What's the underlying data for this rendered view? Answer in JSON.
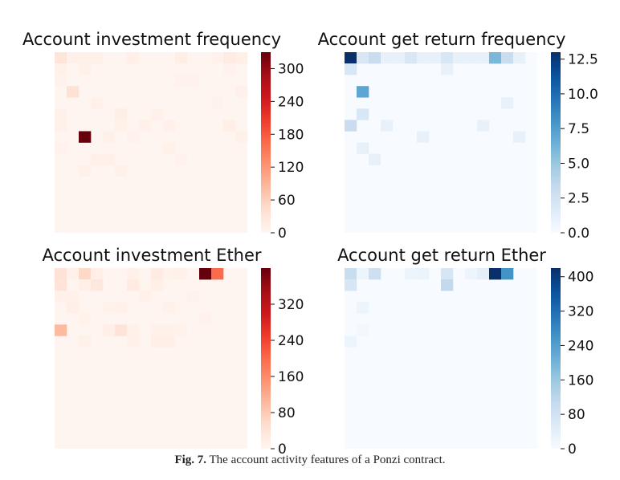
{
  "caption": {
    "label": "Fig. 7.",
    "text": "The account activity features of a Ponzi contract."
  },
  "chart_data": [
    {
      "type": "heatmap",
      "title": "Account investment frequency",
      "colormap": "Reds",
      "vmin": 0,
      "vmax": 330,
      "colorbar_ticks": [
        0,
        60,
        120,
        180,
        240,
        300
      ],
      "cells": [
        {
          "row": 0,
          "col": 0,
          "value": 32
        },
        {
          "row": 0,
          "col": 1,
          "value": 8
        },
        {
          "row": 0,
          "col": 2,
          "value": 8
        },
        {
          "row": 0,
          "col": 3,
          "value": 10
        },
        {
          "row": 0,
          "col": 6,
          "value": 12
        },
        {
          "row": 0,
          "col": 10,
          "value": 14
        },
        {
          "row": 0,
          "col": 13,
          "value": 6
        },
        {
          "row": 0,
          "col": 14,
          "value": 20
        },
        {
          "row": 0,
          "col": 15,
          "value": 12
        },
        {
          "row": 1,
          "col": 0,
          "value": 8
        },
        {
          "row": 1,
          "col": 2,
          "value": 8
        },
        {
          "row": 1,
          "col": 14,
          "value": 6
        },
        {
          "row": 2,
          "col": 0,
          "value": 6
        },
        {
          "row": 2,
          "col": 10,
          "value": 6
        },
        {
          "row": 2,
          "col": 11,
          "value": 6
        },
        {
          "row": 3,
          "col": 1,
          "value": 38
        },
        {
          "row": 3,
          "col": 15,
          "value": 10
        },
        {
          "row": 4,
          "col": 3,
          "value": 8
        },
        {
          "row": 4,
          "col": 13,
          "value": 6
        },
        {
          "row": 5,
          "col": 0,
          "value": 10
        },
        {
          "row": 5,
          "col": 5,
          "value": 14
        },
        {
          "row": 5,
          "col": 8,
          "value": 8
        },
        {
          "row": 6,
          "col": 0,
          "value": 8
        },
        {
          "row": 6,
          "col": 5,
          "value": 10
        },
        {
          "row": 6,
          "col": 7,
          "value": 8
        },
        {
          "row": 6,
          "col": 9,
          "value": 8
        },
        {
          "row": 6,
          "col": 14,
          "value": 12
        },
        {
          "row": 7,
          "col": 2,
          "value": 330
        },
        {
          "row": 7,
          "col": 4,
          "value": 8
        },
        {
          "row": 7,
          "col": 6,
          "value": 6
        },
        {
          "row": 7,
          "col": 15,
          "value": 8
        },
        {
          "row": 8,
          "col": 0,
          "value": 6
        },
        {
          "row": 8,
          "col": 9,
          "value": 8
        },
        {
          "row": 9,
          "col": 3,
          "value": 10
        },
        {
          "row": 9,
          "col": 4,
          "value": 8
        },
        {
          "row": 9,
          "col": 10,
          "value": 6
        },
        {
          "row": 10,
          "col": 2,
          "value": 8
        },
        {
          "row": 10,
          "col": 5,
          "value": 10
        }
      ]
    },
    {
      "type": "heatmap",
      "title": "Account get return frequency",
      "colormap": "Blues",
      "vmin": 0,
      "vmax": 13,
      "colorbar_ticks": [
        0.0,
        2.5,
        5.0,
        7.5,
        10.0,
        12.5
      ],
      "cells": [
        {
          "row": 0,
          "col": 0,
          "value": 13
        },
        {
          "row": 0,
          "col": 1,
          "value": 2
        },
        {
          "row": 0,
          "col": 2,
          "value": 3
        },
        {
          "row": 0,
          "col": 3,
          "value": 1
        },
        {
          "row": 0,
          "col": 4,
          "value": 1
        },
        {
          "row": 0,
          "col": 5,
          "value": 2
        },
        {
          "row": 0,
          "col": 6,
          "value": 1
        },
        {
          "row": 0,
          "col": 7,
          "value": 1
        },
        {
          "row": 0,
          "col": 8,
          "value": 2
        },
        {
          "row": 0,
          "col": 9,
          "value": 1
        },
        {
          "row": 0,
          "col": 10,
          "value": 1
        },
        {
          "row": 0,
          "col": 11,
          "value": 1
        },
        {
          "row": 0,
          "col": 12,
          "value": 6
        },
        {
          "row": 0,
          "col": 13,
          "value": 3
        },
        {
          "row": 0,
          "col": 14,
          "value": 1
        },
        {
          "row": 1,
          "col": 0,
          "value": 2
        },
        {
          "row": 1,
          "col": 8,
          "value": 1
        },
        {
          "row": 3,
          "col": 1,
          "value": 7
        },
        {
          "row": 4,
          "col": 13,
          "value": 1
        },
        {
          "row": 5,
          "col": 1,
          "value": 2
        },
        {
          "row": 6,
          "col": 0,
          "value": 3
        },
        {
          "row": 6,
          "col": 3,
          "value": 1
        },
        {
          "row": 6,
          "col": 11,
          "value": 1
        },
        {
          "row": 7,
          "col": 6,
          "value": 1
        },
        {
          "row": 7,
          "col": 14,
          "value": 1
        },
        {
          "row": 8,
          "col": 1,
          "value": 1
        },
        {
          "row": 9,
          "col": 2,
          "value": 1
        }
      ]
    },
    {
      "type": "heatmap",
      "title": "Account investment Ether",
      "colormap": "Reds",
      "vmin": 0,
      "vmax": 400,
      "colorbar_ticks": [
        0,
        80,
        160,
        240,
        320
      ],
      "cells": [
        {
          "row": 0,
          "col": 0,
          "value": 45
        },
        {
          "row": 0,
          "col": 1,
          "value": 12
        },
        {
          "row": 0,
          "col": 2,
          "value": 60
        },
        {
          "row": 0,
          "col": 3,
          "value": 15
        },
        {
          "row": 0,
          "col": 6,
          "value": 12
        },
        {
          "row": 0,
          "col": 8,
          "value": 25
        },
        {
          "row": 0,
          "col": 9,
          "value": 8
        },
        {
          "row": 0,
          "col": 10,
          "value": 10
        },
        {
          "row": 0,
          "col": 12,
          "value": 400
        },
        {
          "row": 0,
          "col": 13,
          "value": 200
        },
        {
          "row": 1,
          "col": 0,
          "value": 40
        },
        {
          "row": 1,
          "col": 2,
          "value": 15
        },
        {
          "row": 1,
          "col": 3,
          "value": 30
        },
        {
          "row": 1,
          "col": 6,
          "value": 25
        },
        {
          "row": 1,
          "col": 8,
          "value": 15
        },
        {
          "row": 2,
          "col": 0,
          "value": 12
        },
        {
          "row": 2,
          "col": 1,
          "value": 10
        },
        {
          "row": 2,
          "col": 7,
          "value": 12
        },
        {
          "row": 2,
          "col": 11,
          "value": 8
        },
        {
          "row": 3,
          "col": 1,
          "value": 15
        },
        {
          "row": 3,
          "col": 4,
          "value": 8
        },
        {
          "row": 3,
          "col": 5,
          "value": 10
        },
        {
          "row": 3,
          "col": 9,
          "value": 10
        },
        {
          "row": 4,
          "col": 2,
          "value": 8
        },
        {
          "row": 4,
          "col": 12,
          "value": 8
        },
        {
          "row": 5,
          "col": 0,
          "value": 100
        },
        {
          "row": 5,
          "col": 4,
          "value": 15
        },
        {
          "row": 5,
          "col": 5,
          "value": 40
        },
        {
          "row": 5,
          "col": 6,
          "value": 10
        },
        {
          "row": 5,
          "col": 8,
          "value": 10
        },
        {
          "row": 5,
          "col": 9,
          "value": 10
        },
        {
          "row": 5,
          "col": 10,
          "value": 8
        },
        {
          "row": 6,
          "col": 2,
          "value": 12
        },
        {
          "row": 6,
          "col": 6,
          "value": 10
        },
        {
          "row": 6,
          "col": 8,
          "value": 15
        },
        {
          "row": 6,
          "col": 9,
          "value": 15
        }
      ]
    },
    {
      "type": "heatmap",
      "title": "Account get return Ether",
      "colormap": "Blues",
      "vmin": 0,
      "vmax": 420,
      "colorbar_ticks": [
        0,
        80,
        160,
        240,
        320,
        400
      ],
      "cells": [
        {
          "row": 0,
          "col": 0,
          "value": 100
        },
        {
          "row": 0,
          "col": 1,
          "value": 20
        },
        {
          "row": 0,
          "col": 2,
          "value": 90
        },
        {
          "row": 0,
          "col": 5,
          "value": 20
        },
        {
          "row": 0,
          "col": 6,
          "value": 25
        },
        {
          "row": 0,
          "col": 8,
          "value": 70
        },
        {
          "row": 0,
          "col": 10,
          "value": 20
        },
        {
          "row": 0,
          "col": 11,
          "value": 40
        },
        {
          "row": 0,
          "col": 12,
          "value": 420
        },
        {
          "row": 0,
          "col": 13,
          "value": 260
        },
        {
          "row": 1,
          "col": 0,
          "value": 70
        },
        {
          "row": 1,
          "col": 8,
          "value": 110
        },
        {
          "row": 3,
          "col": 1,
          "value": 20
        },
        {
          "row": 5,
          "col": 1,
          "value": 10
        },
        {
          "row": 6,
          "col": 0,
          "value": 20
        }
      ]
    }
  ]
}
